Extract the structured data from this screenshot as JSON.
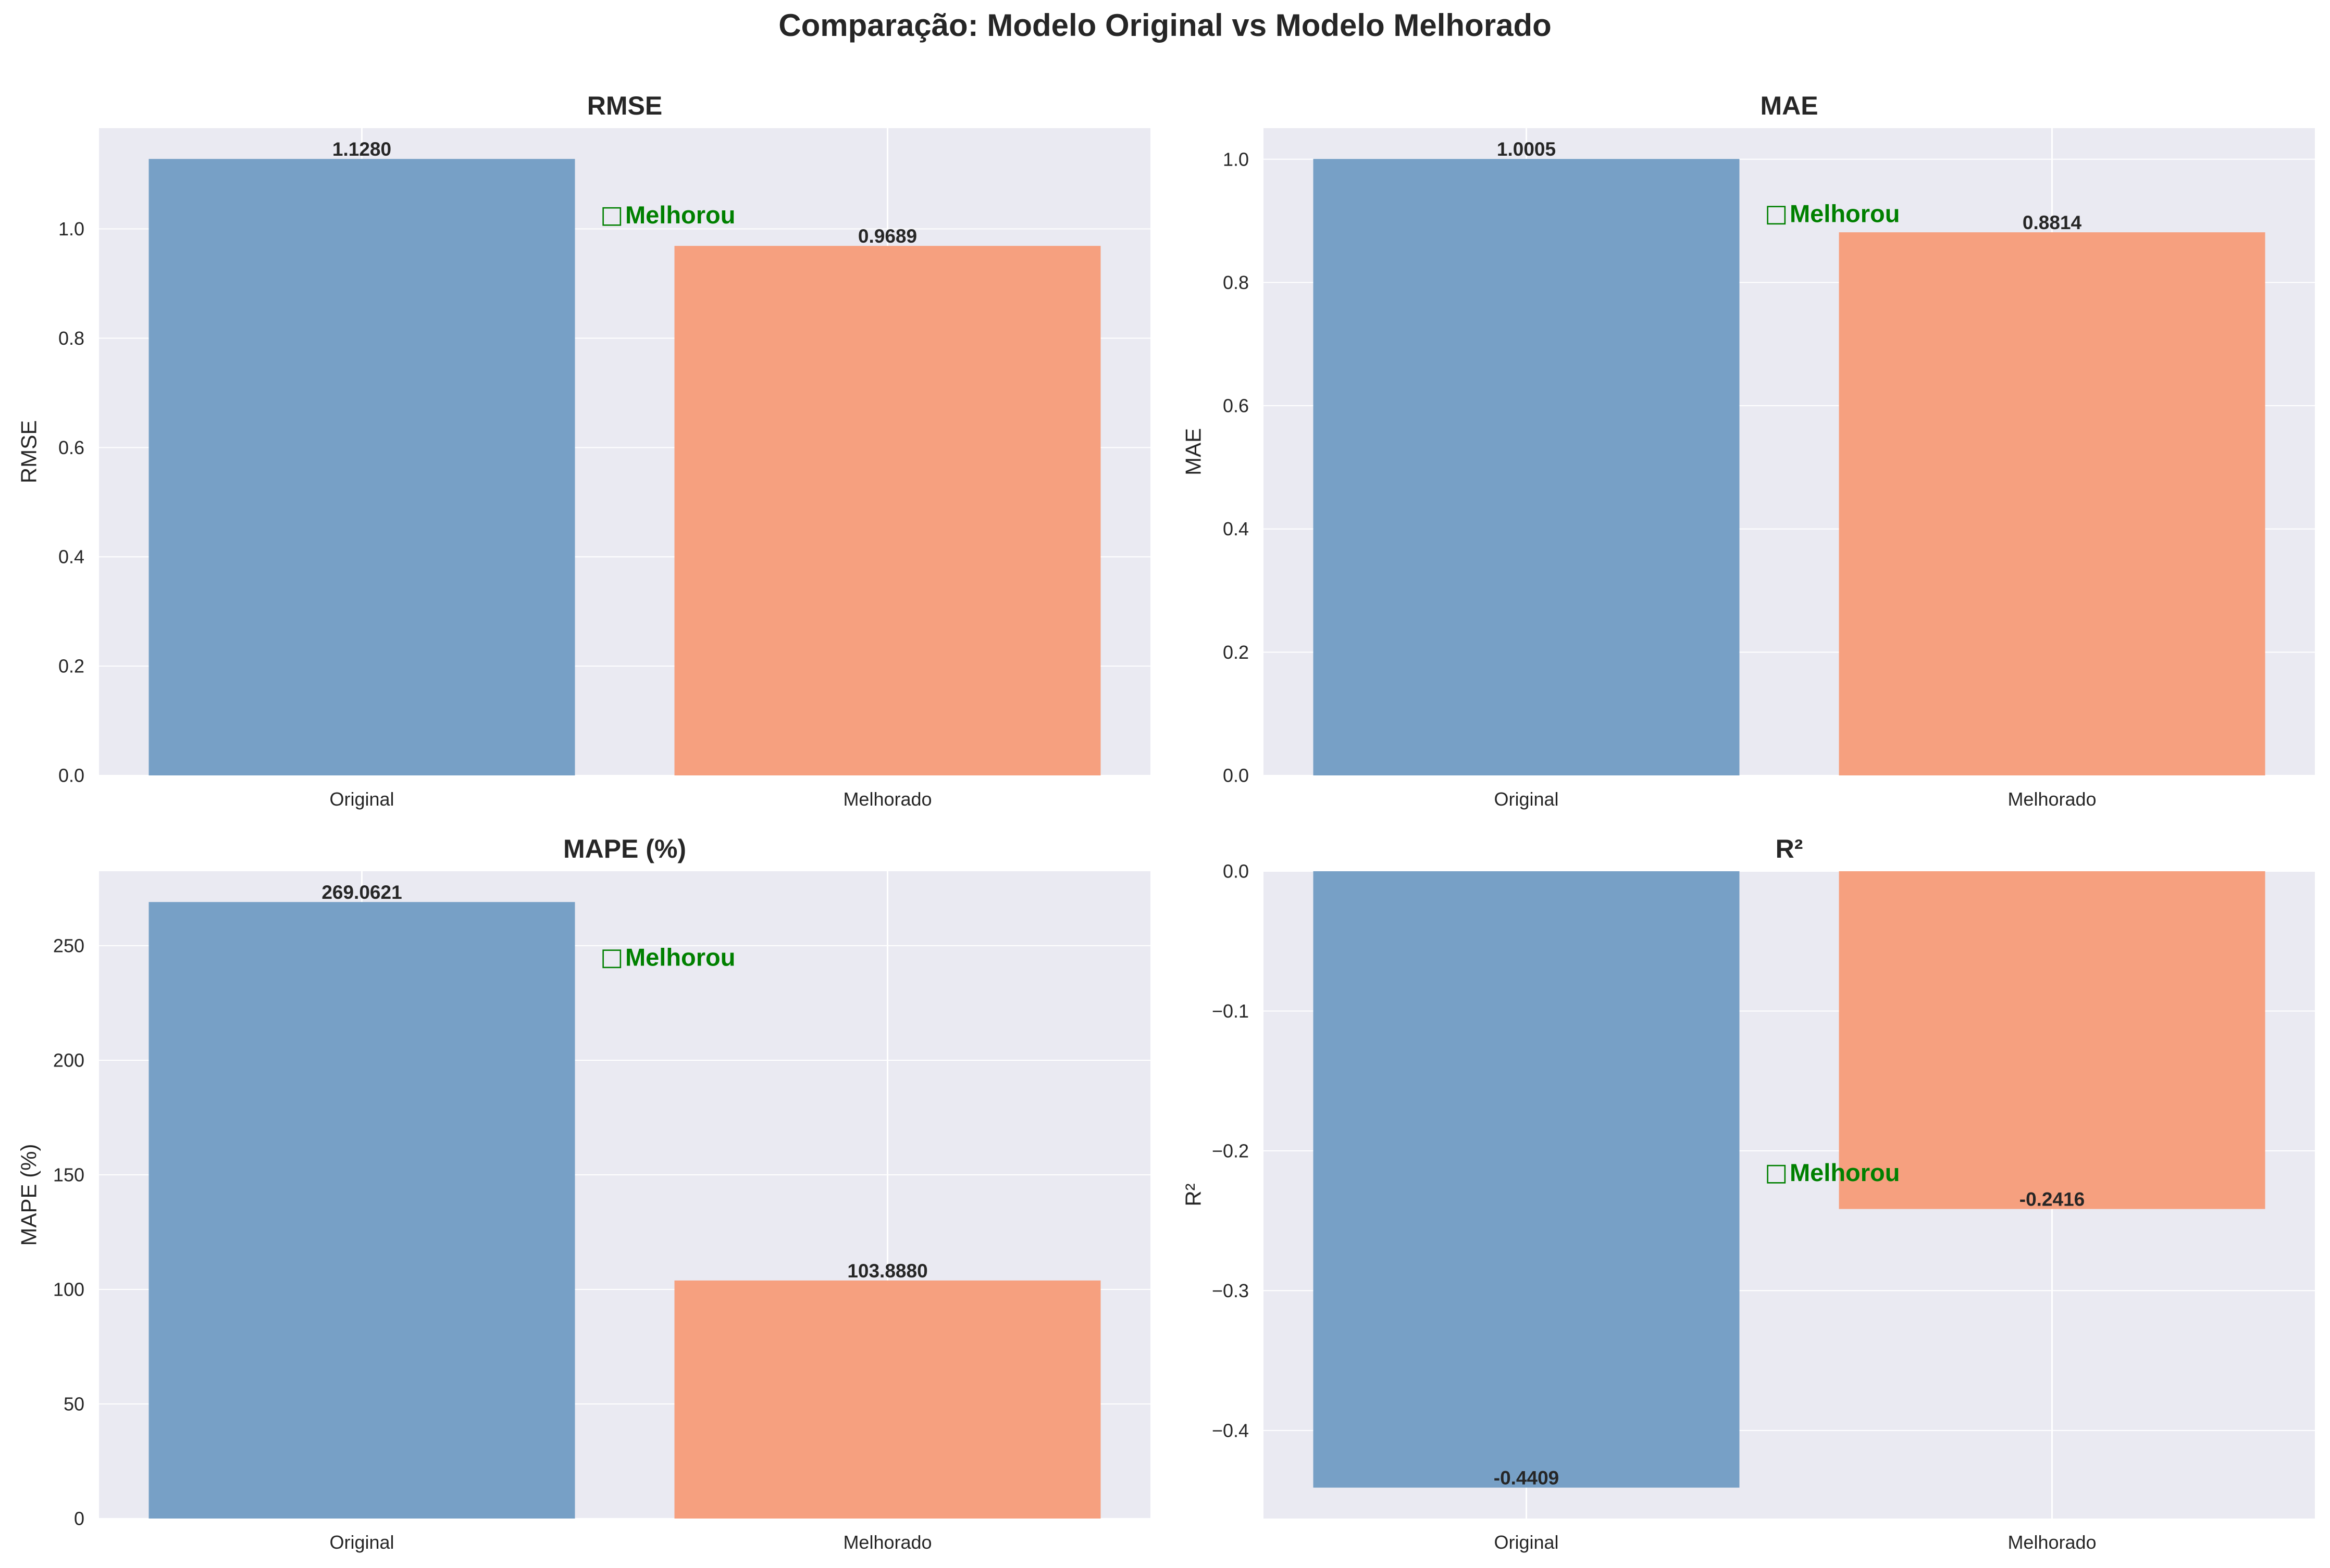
{
  "suptitle": "Comparação: Modelo Original vs Modelo Melhorado",
  "colors": {
    "panel_bg": "#eaeaf2",
    "grid": "#ffffff",
    "original": "#77a0c6",
    "melhorado": "#f6a07f",
    "annotation": "#008000"
  },
  "chart_data": [
    {
      "type": "bar",
      "title": "RMSE",
      "ylabel": "RMSE",
      "xlabel": "",
      "categories": [
        "Original",
        "Melhorado"
      ],
      "values": [
        1.128,
        0.9689
      ],
      "value_labels": [
        "1.1280",
        "0.9689"
      ],
      "ylim": [
        0,
        1.1844
      ],
      "yticks": [
        0,
        0.2,
        0.4,
        0.6,
        0.8,
        1.0
      ],
      "ytick_labels": [
        "0.0",
        "0.2",
        "0.4",
        "0.6",
        "0.8",
        "1.0"
      ],
      "annotation": {
        "icon": "□",
        "text": "Melhorou",
        "y": 1.0258
      },
      "grid": true
    },
    {
      "type": "bar",
      "title": "MAE",
      "ylabel": "MAE",
      "xlabel": "",
      "categories": [
        "Original",
        "Melhorado"
      ],
      "values": [
        1.0005,
        0.8814
      ],
      "value_labels": [
        "1.0005",
        "0.8814"
      ],
      "ylim": [
        0,
        1.0505
      ],
      "yticks": [
        0,
        0.2,
        0.4,
        0.6,
        0.8,
        1.0
      ],
      "ytick_labels": [
        "0.0",
        "0.2",
        "0.4",
        "0.6",
        "0.8",
        "1.0"
      ],
      "annotation": {
        "icon": "□",
        "text": "Melhorou",
        "y": 0.912
      },
      "grid": true
    },
    {
      "type": "bar",
      "title": "MAPE (%)",
      "ylabel": "MAPE (%)",
      "xlabel": "",
      "categories": [
        "Original",
        "Melhorado"
      ],
      "values": [
        269.0621,
        103.888
      ],
      "value_labels": [
        "269.0621",
        "103.8880"
      ],
      "ylim": [
        0,
        282.5
      ],
      "yticks": [
        0,
        50,
        100,
        150,
        200,
        250
      ],
      "ytick_labels": [
        "0",
        "50",
        "100",
        "150",
        "200",
        "250"
      ],
      "annotation": {
        "icon": "□",
        "text": "Melhorou",
        "y": 245
      },
      "grid": true
    },
    {
      "type": "bar",
      "title": "R²",
      "ylabel": "R²",
      "xlabel": "",
      "categories": [
        "Original",
        "Melhorado"
      ],
      "values": [
        -0.4409,
        -0.2416
      ],
      "value_labels": [
        "-0.4409",
        "-0.2416"
      ],
      "ylim": [
        -0.463,
        0.0
      ],
      "yticks": [
        -0.4,
        -0.3,
        -0.2,
        -0.1,
        0.0
      ],
      "ytick_labels": [
        "−0.4",
        "−0.3",
        "−0.2",
        "−0.1",
        "0.0"
      ],
      "annotation": {
        "icon": "□",
        "text": "Melhorou",
        "y": -0.2155
      },
      "grid": true
    }
  ]
}
